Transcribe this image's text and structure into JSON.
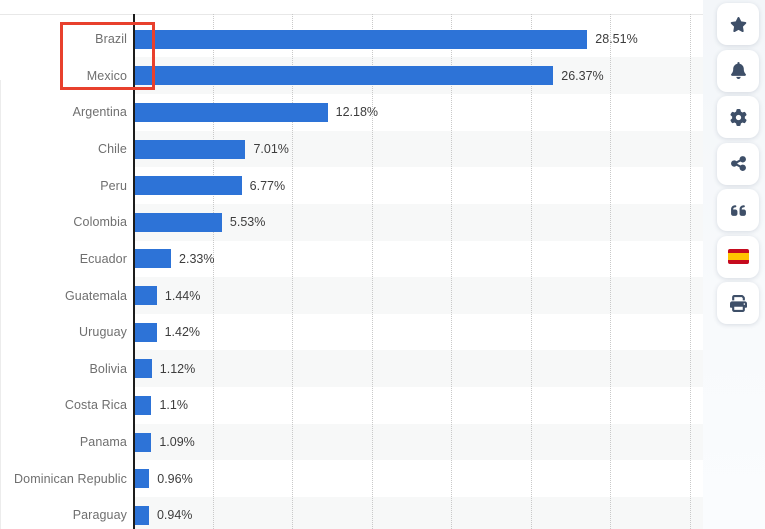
{
  "chart_data": {
    "type": "bar",
    "orientation": "horizontal",
    "title": "",
    "xlabel": "",
    "ylabel": "",
    "categories": [
      "Brazil",
      "Mexico",
      "Argentina",
      "Chile",
      "Peru",
      "Colombia",
      "Ecuador",
      "Guatemala",
      "Uruguay",
      "Bolivia",
      "Costa Rica",
      "Panama",
      "Dominican Republic",
      "Paraguay"
    ],
    "values": [
      28.51,
      26.37,
      12.18,
      7.01,
      6.77,
      5.53,
      2.33,
      1.44,
      1.42,
      1.12,
      1.1,
      1.09,
      0.96,
      0.94
    ],
    "value_labels": [
      "28.51%",
      "26.37%",
      "12.18%",
      "7.01%",
      "6.77%",
      "5.53%",
      "2.33%",
      "1.44%",
      "1.42%",
      "1.12%",
      "1.1%",
      "1.09%",
      "0.96%",
      "0.94%"
    ],
    "xlim": [
      0,
      35.8
    ],
    "gridlines_percent": [
      5,
      10,
      15,
      20,
      25,
      30,
      35
    ],
    "grid": "vertical-dotted",
    "legend": "none",
    "bar_color": "#2d73d7",
    "stripe_color": "#f7f8f8"
  },
  "annotation": {
    "type": "highlight-rectangle",
    "color": "#e8402d",
    "highlighted_categories": [
      "Brazil",
      "Mexico"
    ]
  },
  "toolbar": {
    "icon_color": "#3e4f68",
    "buttons": [
      {
        "name": "favorite-button",
        "icon": "star-icon"
      },
      {
        "name": "notifications-button",
        "icon": "bell-icon"
      },
      {
        "name": "settings-button",
        "icon": "gear-icon"
      },
      {
        "name": "share-button",
        "icon": "share-nodes-icon"
      },
      {
        "name": "cite-button",
        "icon": "quote-icon"
      },
      {
        "name": "language-spanish-button",
        "icon": "spain-flag-icon"
      },
      {
        "name": "print-button",
        "icon": "printer-icon"
      }
    ]
  }
}
